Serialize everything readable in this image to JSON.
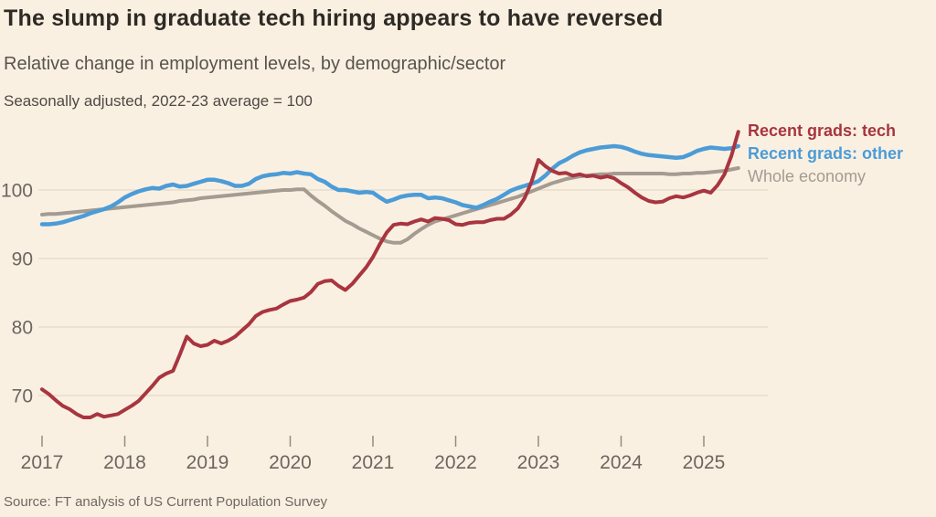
{
  "header": {
    "title": "The slump in graduate tech hiring appears to have reversed",
    "subtitle": "Relative change in employment levels, by demographic/sector",
    "note": "Seasonally adjusted, 2022-23 average = 100"
  },
  "source": "Source: FT analysis of US Current Population Survey",
  "colors": {
    "background": "#faf0e2",
    "gridline": "#e8ddcd",
    "tick": "#948c83",
    "axis_text": "#6d665f",
    "tech_red": "#a8353f",
    "other_blue": "#4b9cd7",
    "whole_gray": "#a49b91"
  },
  "chart_data": {
    "type": "line",
    "title": "The slump in graduate tech hiring appears to have reversed",
    "subtitle": "Relative change in employment levels, by demographic/sector",
    "unit_note": "Seasonally adjusted, 2022-23 average = 100",
    "xlabel": "",
    "ylabel": "",
    "grid": "horizontal-only",
    "legend_position": "right-of-line-ends",
    "x_ticks": [
      2017,
      2018,
      2019,
      2020,
      2021,
      2022,
      2023,
      2024,
      2025
    ],
    "y_ticks": [
      70,
      80,
      90,
      100
    ],
    "ylim": [
      64,
      109.5
    ],
    "x_range_months": {
      "start": "2017-01",
      "end": "2025-06",
      "step_months": 1
    },
    "series": [
      {
        "id": "tech",
        "name": "Recent grads: tech",
        "color": "#a8353f",
        "values": [
          70.9,
          70.2,
          69.3,
          68.5,
          68.0,
          67.3,
          66.8,
          66.8,
          67.3,
          66.9,
          67.1,
          67.3,
          67.9,
          68.5,
          69.2,
          70.3,
          71.4,
          72.6,
          73.2,
          73.6,
          76.0,
          78.6,
          77.6,
          77.2,
          77.4,
          78.0,
          77.6,
          78.0,
          78.6,
          79.5,
          80.4,
          81.6,
          82.2,
          82.5,
          82.7,
          83.3,
          83.8,
          84.0,
          84.3,
          85.1,
          86.3,
          86.7,
          86.8,
          86.0,
          85.4,
          86.3,
          87.5,
          88.7,
          90.2,
          92.1,
          93.8,
          94.9,
          95.1,
          95.0,
          95.4,
          95.7,
          95.4,
          95.9,
          95.8,
          95.6,
          95.0,
          94.9,
          95.2,
          95.3,
          95.3,
          95.6,
          95.8,
          95.8,
          96.4,
          97.3,
          98.8,
          101.2,
          104.4,
          103.5,
          102.8,
          102.4,
          102.5,
          102.1,
          102.3,
          102.0,
          102.1,
          101.8,
          102.0,
          101.7,
          101.0,
          100.4,
          99.6,
          98.9,
          98.4,
          98.2,
          98.3,
          98.8,
          99.1,
          98.9,
          99.2,
          99.6,
          99.9,
          99.6,
          100.7,
          102.3,
          105.0,
          108.5
        ]
      },
      {
        "id": "other",
        "name": "Recent grads: other",
        "color": "#4b9cd7",
        "values": [
          95.0,
          95.0,
          95.1,
          95.3,
          95.6,
          95.9,
          96.2,
          96.6,
          96.9,
          97.2,
          97.6,
          98.2,
          98.9,
          99.4,
          99.8,
          100.1,
          100.3,
          100.2,
          100.6,
          100.8,
          100.5,
          100.6,
          100.9,
          101.2,
          101.5,
          101.5,
          101.3,
          101.0,
          100.6,
          100.6,
          100.9,
          101.6,
          102.0,
          102.2,
          102.3,
          102.5,
          102.4,
          102.6,
          102.4,
          102.3,
          101.6,
          101.2,
          100.5,
          100.0,
          100.0,
          99.8,
          99.6,
          99.7,
          99.6,
          98.9,
          98.3,
          98.6,
          99.0,
          99.2,
          99.3,
          99.3,
          98.8,
          98.9,
          98.8,
          98.5,
          98.2,
          97.8,
          97.6,
          97.4,
          97.8,
          98.3,
          98.7,
          99.3,
          99.9,
          100.3,
          100.6,
          100.9,
          101.3,
          102.1,
          103.1,
          103.9,
          104.4,
          105.0,
          105.5,
          105.8,
          106.0,
          106.2,
          106.3,
          106.4,
          106.3,
          106.0,
          105.6,
          105.3,
          105.1,
          105.0,
          104.9,
          104.8,
          104.7,
          104.8,
          105.2,
          105.7,
          106.0,
          106.2,
          106.1,
          106.0,
          106.1,
          106.4
        ]
      },
      {
        "id": "whole-economy",
        "name": "Whole economy",
        "color": "#a49b91",
        "values": [
          96.4,
          96.5,
          96.5,
          96.6,
          96.7,
          96.8,
          96.9,
          97.0,
          97.1,
          97.2,
          97.3,
          97.4,
          97.5,
          97.6,
          97.7,
          97.8,
          97.9,
          98.0,
          98.1,
          98.2,
          98.4,
          98.5,
          98.6,
          98.8,
          98.9,
          99.0,
          99.1,
          99.2,
          99.3,
          99.4,
          99.5,
          99.6,
          99.7,
          99.8,
          99.9,
          100.0,
          100.0,
          100.1,
          100.1,
          99.2,
          98.4,
          97.7,
          96.9,
          96.2,
          95.5,
          95.0,
          94.4,
          93.9,
          93.4,
          92.9,
          92.5,
          92.3,
          92.3,
          92.8,
          93.6,
          94.3,
          94.9,
          95.4,
          95.7,
          96.0,
          96.3,
          96.6,
          96.9,
          97.2,
          97.5,
          97.8,
          98.1,
          98.4,
          98.7,
          99.0,
          99.4,
          99.8,
          100.2,
          100.6,
          101.0,
          101.3,
          101.6,
          101.8,
          102.0,
          102.1,
          102.2,
          102.3,
          102.3,
          102.4,
          102.4,
          102.4,
          102.4,
          102.4,
          102.4,
          102.4,
          102.4,
          102.3,
          102.3,
          102.4,
          102.4,
          102.5,
          102.5,
          102.6,
          102.7,
          102.8,
          103.0,
          103.2
        ]
      }
    ]
  }
}
